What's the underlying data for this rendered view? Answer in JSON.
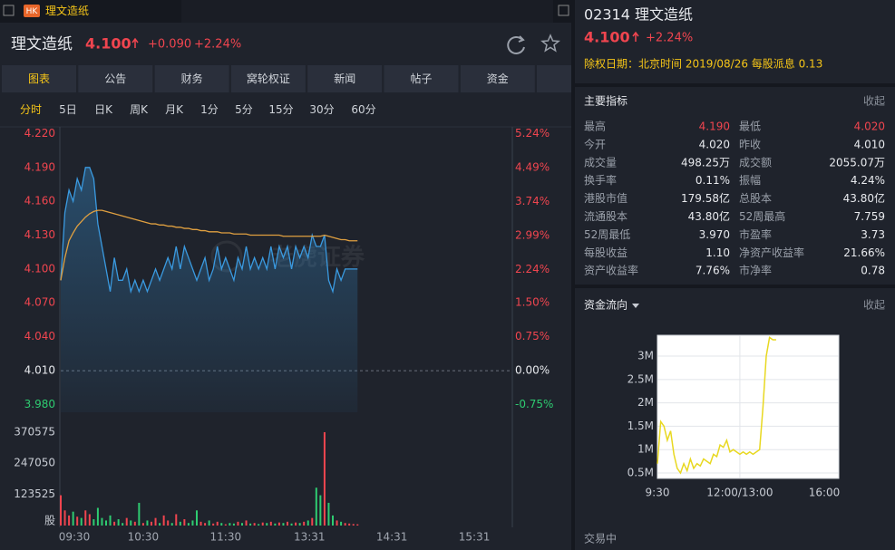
{
  "tab": {
    "badge": "HK",
    "title": "理文造纸"
  },
  "header": {
    "name": "理文造纸",
    "price": "4.100",
    "change": "+0.090",
    "pct": "+2.24%"
  },
  "nav_tabs": {
    "items": [
      "图表",
      "公告",
      "财务",
      "窝轮权证",
      "新闻",
      "帖子",
      "资金"
    ],
    "active": 0
  },
  "periods": {
    "items": [
      "分时",
      "5日",
      "日K",
      "周K",
      "月K",
      "1分",
      "5分",
      "15分",
      "30分",
      "60分"
    ],
    "active": 0
  },
  "price_chart": {
    "type": "line",
    "watermark": "老虎证券",
    "x": [
      0,
      3,
      6,
      9,
      12,
      15,
      18,
      21,
      24,
      27,
      30,
      33,
      36,
      39,
      42,
      45,
      48,
      51,
      54,
      57,
      60,
      63,
      66,
      69,
      72,
      75,
      78,
      81,
      84,
      87,
      90,
      93,
      96,
      99,
      102,
      105,
      108,
      111,
      114,
      117,
      120,
      123,
      126,
      129,
      132,
      135,
      138,
      141,
      144,
      147,
      150,
      153,
      156,
      159,
      162,
      165,
      168,
      171,
      174,
      177,
      180,
      183,
      186,
      189,
      192,
      195,
      198,
      201,
      204,
      207,
      210,
      213,
      216
    ],
    "xlim": [
      0,
      330
    ],
    "xticks": [
      {
        "value": 0,
        "label": "09:30"
      },
      {
        "value": 60,
        "label": "10:30"
      },
      {
        "value": 120,
        "label": "11:30"
      },
      {
        "value": 181,
        "label": "13:31"
      },
      {
        "value": 241,
        "label": "14:31"
      },
      {
        "value": 301,
        "label": "15:31"
      }
    ],
    "ylim": [
      3.973,
      4.226
    ],
    "yticks": [
      {
        "value": 4.22,
        "label": "4.220"
      },
      {
        "value": 4.19,
        "label": "4.190"
      },
      {
        "value": 4.16,
        "label": "4.160"
      },
      {
        "value": 4.13,
        "label": "4.130"
      },
      {
        "value": 4.1,
        "label": "4.100"
      },
      {
        "value": 4.07,
        "label": "4.070"
      },
      {
        "value": 4.04,
        "label": "4.040"
      },
      {
        "value": 4.01,
        "label": "4.010"
      },
      {
        "value": 3.98,
        "label": "3.980"
      }
    ],
    "y2lim": [
      -0.92,
      5.39
    ],
    "y2ticks": [
      {
        "value": 5.24,
        "label": "5.24%"
      },
      {
        "value": 4.49,
        "label": "4.49%"
      },
      {
        "value": 3.74,
        "label": "3.74%"
      },
      {
        "value": 2.99,
        "label": "2.99%"
      },
      {
        "value": 2.24,
        "label": "2.24%"
      },
      {
        "value": 1.5,
        "label": "1.50%"
      },
      {
        "value": 0.75,
        "label": "0.75%"
      },
      {
        "value": 0,
        "label": "0.00%"
      },
      {
        "value": -0.75,
        "label": "-0.75%"
      }
    ],
    "up_color": "#f0454f",
    "down_color": "#2ecc71",
    "series": [
      {
        "name": "price",
        "color": "#3a9ae0",
        "values": [
          4.09,
          4.15,
          4.17,
          4.16,
          4.18,
          4.17,
          4.19,
          4.19,
          4.18,
          4.14,
          4.12,
          4.1,
          4.08,
          4.11,
          4.09,
          4.09,
          4.1,
          4.08,
          4.09,
          4.08,
          4.09,
          4.08,
          4.09,
          4.1,
          4.09,
          4.1,
          4.11,
          4.1,
          4.12,
          4.1,
          4.12,
          4.11,
          4.1,
          4.09,
          4.1,
          4.11,
          4.09,
          4.1,
          4.12,
          4.1,
          4.11,
          4.1,
          4.09,
          4.11,
          4.1,
          4.12,
          4.1,
          4.11,
          4.1,
          4.11,
          4.1,
          4.12,
          4.1,
          4.12,
          4.11,
          4.12,
          4.1,
          4.12,
          4.11,
          4.12,
          4.11,
          4.13,
          4.12,
          4.12,
          4.13,
          4.09,
          4.08,
          4.1,
          4.09,
          4.1,
          4.1,
          4.1,
          4.1
        ]
      },
      {
        "name": "avg",
        "color": "#e0a040",
        "values": [
          4.09,
          4.11,
          4.125,
          4.132,
          4.138,
          4.142,
          4.146,
          4.149,
          4.151,
          4.152,
          4.152,
          4.151,
          4.15,
          4.149,
          4.148,
          4.147,
          4.146,
          4.145,
          4.144,
          4.143,
          4.142,
          4.141,
          4.14,
          4.14,
          4.139,
          4.139,
          4.138,
          4.138,
          4.137,
          4.137,
          4.136,
          4.136,
          4.135,
          4.135,
          4.134,
          4.134,
          4.133,
          4.133,
          4.133,
          4.132,
          4.132,
          4.132,
          4.131,
          4.131,
          4.131,
          4.131,
          4.13,
          4.13,
          4.13,
          4.13,
          4.13,
          4.13,
          4.13,
          4.13,
          4.129,
          4.129,
          4.129,
          4.129,
          4.129,
          4.129,
          4.129,
          4.129,
          4.129,
          4.129,
          4.13,
          4.129,
          4.128,
          4.127,
          4.126,
          4.126,
          4.125,
          4.125,
          4.125
        ]
      }
    ],
    "volume": {
      "ylim": [
        0,
        413000
      ],
      "yticks": [
        {
          "value": 370575,
          "label": "370575"
        },
        {
          "value": 247050,
          "label": "247050"
        },
        {
          "value": 123525,
          "label": "123525"
        },
        {
          "value": 0,
          "label": "股"
        }
      ],
      "values": [
        120000,
        60000,
        40000,
        55000,
        35000,
        30000,
        60000,
        45000,
        25000,
        70000,
        30000,
        20000,
        40000,
        15000,
        25000,
        10000,
        30000,
        20000,
        15000,
        90000,
        10000,
        20000,
        15000,
        30000,
        10000,
        40000,
        20000,
        10000,
        45000,
        15000,
        25000,
        10000,
        20000,
        60000,
        15000,
        10000,
        20000,
        8000,
        15000,
        10000,
        5000,
        10000,
        8000,
        15000,
        10000,
        20000,
        8000,
        10000,
        6000,
        12000,
        10000,
        15000,
        8000,
        12000,
        10000,
        15000,
        8000,
        12000,
        10000,
        15000,
        20000,
        30000,
        150000,
        120000,
        370000,
        90000,
        40000,
        20000,
        15000,
        10000,
        8000,
        6000,
        5000
      ]
    }
  },
  "side": {
    "title": "02314 理文造纸",
    "price": "4.100",
    "pct": "+2.24%",
    "notice": "除权日期：北京时间 2019/08/26 每股派息 0.13",
    "indicators_title": "主要指标",
    "collapse": "收起",
    "indicators": [
      {
        "label": "最高",
        "value": "4.190",
        "color": "#f0454f"
      },
      {
        "label": "最低",
        "value": "4.020",
        "color": "#f0454f"
      },
      {
        "label": "今开",
        "value": "4.020"
      },
      {
        "label": "昨收",
        "value": "4.010"
      },
      {
        "label": "成交量",
        "value": "498.25万"
      },
      {
        "label": "成交额",
        "value": "2055.07万"
      },
      {
        "label": "换手率",
        "value": "0.11%"
      },
      {
        "label": "振幅",
        "value": "4.24%"
      },
      {
        "label": "港股市值",
        "value": "179.58亿"
      },
      {
        "label": "总股本",
        "value": "43.80亿"
      },
      {
        "label": "流通股本",
        "value": "43.80亿"
      },
      {
        "label": "52周最高",
        "value": "7.759"
      },
      {
        "label": "52周最低",
        "value": "3.970"
      },
      {
        "label": "市盈率",
        "value": "3.73"
      },
      {
        "label": "每股收益",
        "value": "1.10"
      },
      {
        "label": "净资产收益率",
        "value": "21.66%"
      },
      {
        "label": "资产收益率",
        "value": "7.76%"
      },
      {
        "label": "市净率",
        "value": "0.78"
      }
    ],
    "flow_title": "资金流向",
    "flow_collapse": "收起",
    "status": "交易中"
  },
  "chart_data": {
    "type": "line",
    "x": [
      0,
      6,
      12,
      18,
      24,
      30,
      36,
      42,
      48,
      54,
      60,
      66,
      72,
      78,
      84,
      90,
      96,
      102,
      108,
      114,
      120,
      126,
      132,
      138,
      144,
      150,
      156,
      162,
      168,
      174,
      180,
      186,
      192,
      198,
      204,
      210,
      216
    ],
    "xlim": [
      0,
      330
    ],
    "xticks": [
      {
        "value": 0,
        "label": "9:30"
      },
      {
        "value": 150,
        "label": "12:00/13:00"
      },
      {
        "value": 330,
        "label": "16:00"
      }
    ],
    "ylim": [
      384000,
      3446000
    ],
    "yticks": [
      {
        "value": 3000000,
        "label": "3M"
      },
      {
        "value": 2500000,
        "label": "2.5M"
      },
      {
        "value": 2000000,
        "label": "2M"
      },
      {
        "value": 1500000,
        "label": "1.5M"
      },
      {
        "value": 1000000,
        "label": "1M"
      },
      {
        "value": 500000,
        "label": "0.5M"
      }
    ],
    "grid": true,
    "series": [
      {
        "name": "flow",
        "color": "#e8d820",
        "values": [
          700000,
          1600000,
          1500000,
          1200000,
          1400000,
          900000,
          600000,
          500000,
          700000,
          550000,
          800000,
          600000,
          700000,
          650000,
          800000,
          750000,
          700000,
          900000,
          850000,
          1100000,
          1050000,
          1200000,
          950000,
          1000000,
          950000,
          900000,
          950000,
          900000,
          950000,
          900000,
          950000,
          1000000,
          1900000,
          3000000,
          3400000,
          3350000,
          3350000
        ]
      }
    ]
  }
}
